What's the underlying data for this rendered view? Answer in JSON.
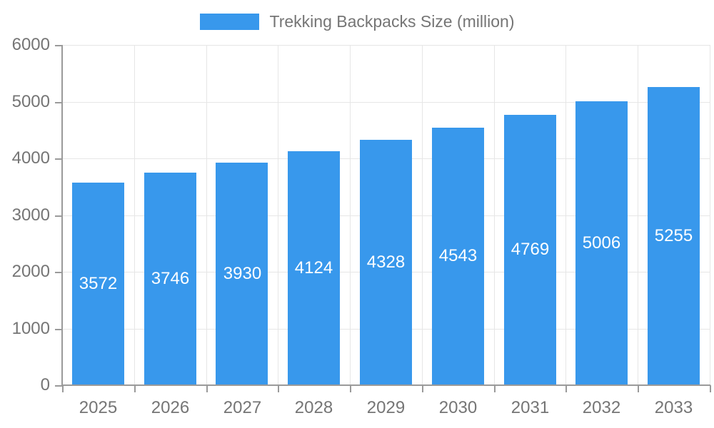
{
  "page": {
    "background_color": "#ffffff"
  },
  "legend": {
    "label": "Trekking Backpacks Size (million)",
    "position": "top"
  },
  "chart_data": {
    "type": "bar",
    "title": "Trekking Backpacks Size (million)",
    "categories": [
      "2025",
      "2026",
      "2027",
      "2028",
      "2029",
      "2030",
      "2031",
      "2032",
      "2033"
    ],
    "values": [
      3572,
      3746,
      3930,
      4124,
      4328,
      4543,
      4769,
      5006,
      5255
    ],
    "value_labels": [
      "3572",
      "3746",
      "3930",
      "4124",
      "4328",
      "4543",
      "4769",
      "5006",
      "5255"
    ],
    "xlabel": "",
    "ylabel": "",
    "ylim": [
      0,
      6000
    ],
    "y_tick_step": 1000,
    "y_tick_labels": [
      "0",
      "1000",
      "2000",
      "3000",
      "4000",
      "5000",
      "6000"
    ],
    "grid": true,
    "legend_position": "top",
    "colors": {
      "bar": "#3898EC",
      "value_label": "#FFFFFF",
      "axis_line": "#9A9A9A",
      "gridline": "#E6E6E6",
      "tick_label": "#757575",
      "legend_text": "#757575"
    }
  }
}
